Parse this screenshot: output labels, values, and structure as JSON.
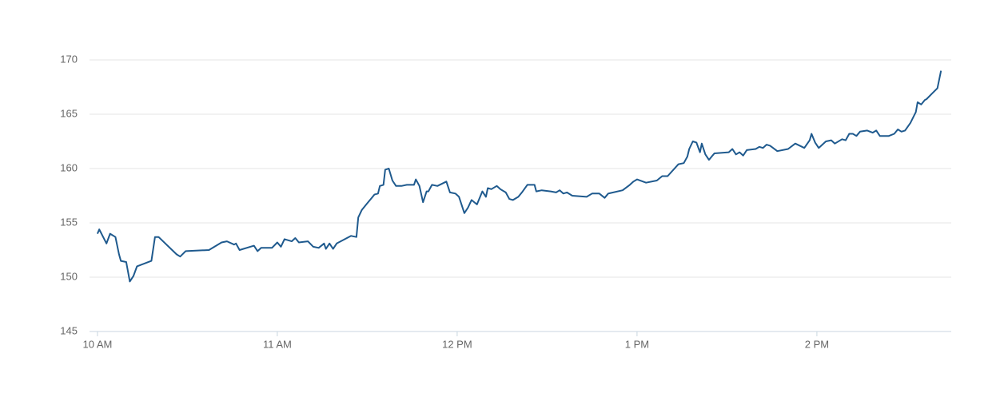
{
  "chart_data": {
    "type": "line",
    "x": [
      10.0,
      10.01,
      10.05,
      10.07,
      10.1,
      10.12,
      10.13,
      10.16,
      10.18,
      10.2,
      10.22,
      10.3,
      10.32,
      10.34,
      10.44,
      10.46,
      10.49,
      10.62,
      10.69,
      10.72,
      10.76,
      10.77,
      10.79,
      10.87,
      10.89,
      10.91,
      10.97,
      11.0,
      11.02,
      11.04,
      11.08,
      11.1,
      11.12,
      11.17,
      11.2,
      11.23,
      11.26,
      11.27,
      11.29,
      11.31,
      11.33,
      11.41,
      11.44,
      11.45,
      11.47,
      11.5,
      11.52,
      11.54,
      11.56,
      11.57,
      11.59,
      11.6,
      11.62,
      11.64,
      11.66,
      11.69,
      11.72,
      11.76,
      11.77,
      11.79,
      11.81,
      11.83,
      11.84,
      11.86,
      11.89,
      11.94,
      11.96,
      11.99,
      12.01,
      12.04,
      12.06,
      12.08,
      12.11,
      12.14,
      12.16,
      12.17,
      12.19,
      12.22,
      12.24,
      12.27,
      12.29,
      12.31,
      12.34,
      12.36,
      12.39,
      12.43,
      12.44,
      12.47,
      12.52,
      12.55,
      12.57,
      12.59,
      12.61,
      12.64,
      12.72,
      12.75,
      12.79,
      12.82,
      12.84,
      12.92,
      12.96,
      12.98,
      13.0,
      13.05,
      13.11,
      13.14,
      13.17,
      13.23,
      13.26,
      13.28,
      13.29,
      13.31,
      13.33,
      13.35,
      13.36,
      13.38,
      13.4,
      13.43,
      13.51,
      13.53,
      13.55,
      13.57,
      13.59,
      13.61,
      13.66,
      13.68,
      13.7,
      13.72,
      13.74,
      13.78,
      13.84,
      13.88,
      13.93,
      13.96,
      13.97,
      13.99,
      14.01,
      14.05,
      14.08,
      14.1,
      14.14,
      14.16,
      14.18,
      14.2,
      14.22,
      14.24,
      14.28,
      14.31,
      14.33,
      14.35,
      14.4,
      14.43,
      14.45,
      14.47,
      14.49,
      14.52,
      14.55,
      14.56,
      14.58,
      14.6,
      14.61,
      14.64,
      14.67,
      14.69
    ],
    "values": [
      154.0,
      154.4,
      153.1,
      154.0,
      153.7,
      152.1,
      151.5,
      151.4,
      149.6,
      150.1,
      151.0,
      151.5,
      153.7,
      153.7,
      152.1,
      151.9,
      152.4,
      152.5,
      153.2,
      153.3,
      153.0,
      153.1,
      152.5,
      152.9,
      152.4,
      152.7,
      152.7,
      153.2,
      152.8,
      153.5,
      153.3,
      153.6,
      153.2,
      153.3,
      152.8,
      152.7,
      153.1,
      152.6,
      153.1,
      152.6,
      153.1,
      153.8,
      153.7,
      155.5,
      156.2,
      156.8,
      157.2,
      157.6,
      157.7,
      158.4,
      158.5,
      159.9,
      160.0,
      158.9,
      158.4,
      158.4,
      158.5,
      158.5,
      159.0,
      158.4,
      156.9,
      157.9,
      157.9,
      158.5,
      158.4,
      158.8,
      157.8,
      157.7,
      157.4,
      155.9,
      156.4,
      157.1,
      156.7,
      157.9,
      157.4,
      158.2,
      158.1,
      158.4,
      158.1,
      157.8,
      157.2,
      157.1,
      157.4,
      157.8,
      158.5,
      158.5,
      157.9,
      158.0,
      157.9,
      157.8,
      158.0,
      157.7,
      157.8,
      157.5,
      157.4,
      157.7,
      157.7,
      157.3,
      157.7,
      158.0,
      158.5,
      158.8,
      159.0,
      158.7,
      158.9,
      159.3,
      159.3,
      160.4,
      160.5,
      161.1,
      161.8,
      162.5,
      162.4,
      161.5,
      162.3,
      161.3,
      160.8,
      161.4,
      161.5,
      161.8,
      161.3,
      161.5,
      161.2,
      161.7,
      161.8,
      162.0,
      161.9,
      162.2,
      162.1,
      161.6,
      161.8,
      162.3,
      161.9,
      162.6,
      163.2,
      162.4,
      161.9,
      162.5,
      162.6,
      162.3,
      162.7,
      162.6,
      163.2,
      163.2,
      163.0,
      163.4,
      163.5,
      163.3,
      163.5,
      163.0,
      163.0,
      163.2,
      163.6,
      163.4,
      163.5,
      164.2,
      165.2,
      166.1,
      165.9,
      166.3,
      166.4,
      166.9,
      167.4,
      169.0
    ],
    "color": "#1f5a8e",
    "xlim": [
      9.956,
      14.747
    ],
    "xticks": [
      {
        "value": 10,
        "label": "10 AM"
      },
      {
        "value": 11,
        "label": "11 AM"
      },
      {
        "value": 12,
        "label": "12 PM"
      },
      {
        "value": 13,
        "label": "1 PM"
      },
      {
        "value": 14,
        "label": "2 PM"
      }
    ],
    "ylim": [
      145,
      170
    ],
    "yticks": [
      145,
      150,
      155,
      160,
      165,
      170
    ],
    "grid": true
  }
}
